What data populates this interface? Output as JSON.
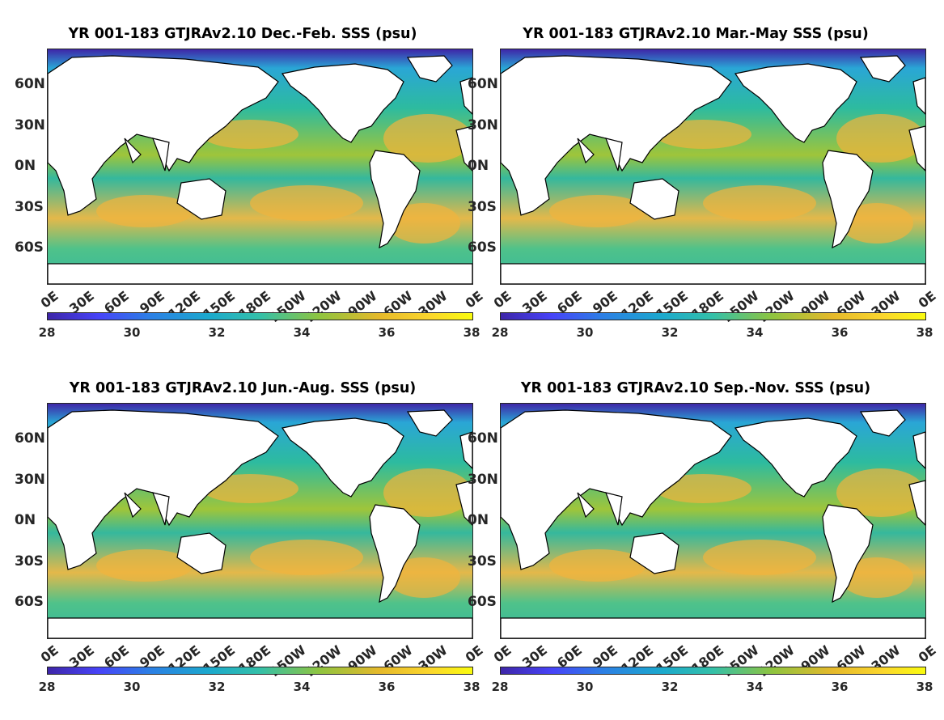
{
  "panels": [
    {
      "title": "YR 001-183 GTJRAv2.10 Dec.-Feb. SSS (psu)",
      "season": "DJF"
    },
    {
      "title": "YR 001-183 GTJRAv2.10 Mar.-May SSS (psu)",
      "season": "MAM"
    },
    {
      "title": "YR 001-183 GTJRAv2.10 Jun.-Aug. SSS (psu)",
      "season": "JJA"
    },
    {
      "title": "YR 001-183 GTJRAv2.10 Sep.-Nov. SSS (psu)",
      "season": "SON"
    }
  ],
  "lat_labels": [
    "60N",
    "30N",
    "0N",
    "30S",
    "60S"
  ],
  "lon_labels": [
    "0E",
    "30E",
    "60E",
    "90E",
    "120E",
    "150E",
    "180E",
    "150W",
    "120W",
    "90W",
    "60W",
    "30W",
    "0E"
  ],
  "colorbar": {
    "ticks": [
      "28",
      "30",
      "32",
      "34",
      "36",
      "38"
    ],
    "min": 28,
    "max": 38,
    "units": "psu",
    "colormap": "parula"
  },
  "colors": {
    "land": "#ffffff",
    "coast": "#000000",
    "fresh": "#3e26a8",
    "mid": "#35b89d",
    "salty": "#f1b33d",
    "max": "#f9fb0e"
  }
}
